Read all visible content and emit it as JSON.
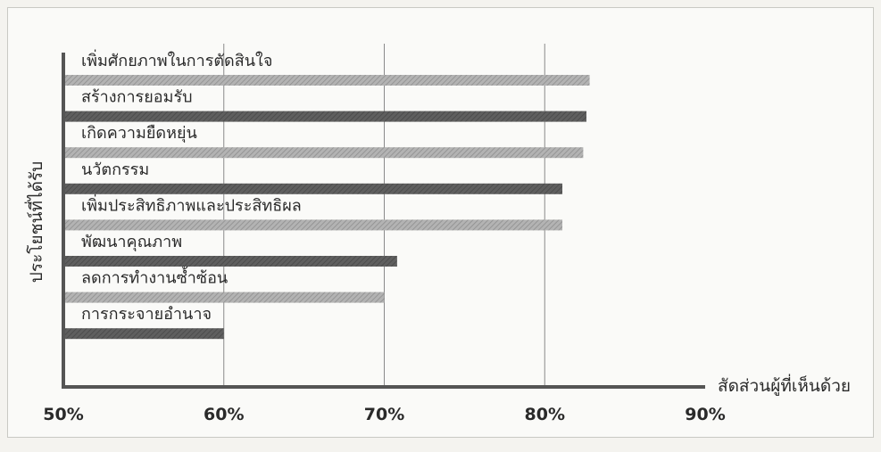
{
  "chart_data": {
    "type": "bar",
    "orientation": "horizontal",
    "title": "",
    "xlabel": "สัดส่วนผู้ที่เห็นด้วย",
    "ylabel": "ประโยชน์ที่ได้รับ",
    "xlim": [
      50,
      90
    ],
    "xticks": [
      50,
      60,
      70,
      80,
      90
    ],
    "tick_suffix": "%",
    "grid": true,
    "categories": [
      "เพิ่มศักยภาพในการตัดสินใจ",
      "สร้างการยอมรับ",
      "เกิดความยืดหยุ่น",
      "นวัตกรรม",
      "เพิ่มประสิทธิภาพและประสิทธิผล",
      "พัฒนาคุณภาพ",
      "ลดการทำงานซ้ำซ้อน",
      "การกระจายอำนาจ"
    ],
    "values": [
      82.8,
      82.6,
      82.4,
      81.1,
      81.1,
      70.8,
      70.0,
      60.0
    ],
    "colors": {
      "light_bar": "#a3a3a3",
      "dark_bar": "#5a5a5a",
      "axis": "#555555",
      "grid": "#8a8a8a",
      "text": "#2a2a2a"
    },
    "bar_shades": [
      "light",
      "dark",
      "light",
      "dark",
      "light",
      "dark",
      "light",
      "dark"
    ]
  }
}
